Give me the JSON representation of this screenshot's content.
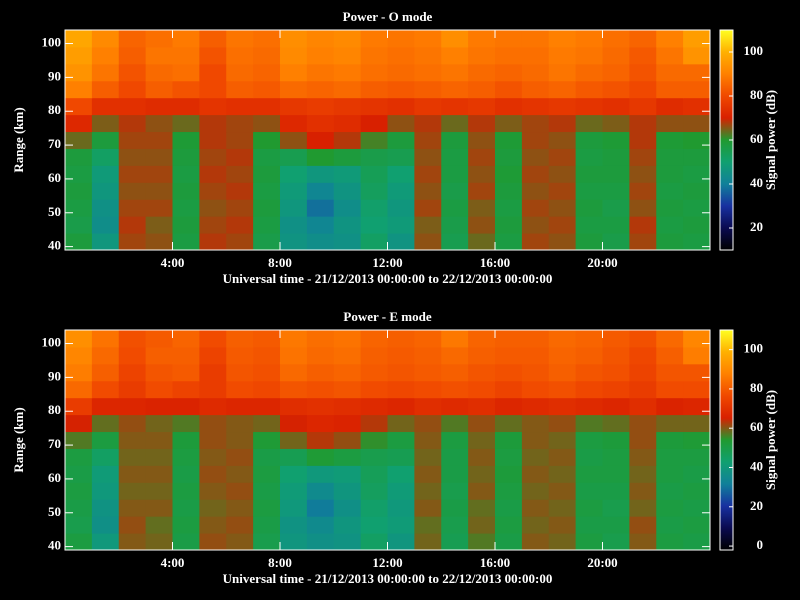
{
  "chart_data": [
    {
      "type": "heatmap",
      "title": "Power - O mode",
      "xlabel": "Universal time - 21/12/2013 00:00:00 to 22/12/2013 00:00:00",
      "ylabel": "Range (km)",
      "colorbar_label": "Signal power (dB)",
      "xlim": [
        0,
        24
      ],
      "ylim": [
        39,
        104
      ],
      "clim": [
        10,
        110
      ],
      "xticks": [
        {
          "value": 4,
          "label": "4:00"
        },
        {
          "value": 8,
          "label": "8:00"
        },
        {
          "value": 12,
          "label": "12:00"
        },
        {
          "value": 16,
          "label": "16:00"
        },
        {
          "value": 20,
          "label": "20:00"
        }
      ],
      "yticks": [
        40,
        50,
        60,
        70,
        80,
        90,
        100
      ],
      "cticks": [
        20,
        40,
        60,
        80,
        100
      ],
      "colormap": [
        "#000000",
        "#0a0a50",
        "#1830a0",
        "#10809a",
        "#10a070",
        "#209a30",
        "#d82000",
        "#f04800",
        "#ff8000",
        "#ffb000",
        "#ffff20"
      ],
      "xbins": [
        0,
        1,
        2,
        3,
        4,
        5,
        6,
        7,
        8,
        9,
        10,
        11,
        12,
        13,
        14,
        15,
        16,
        17,
        18,
        19,
        20,
        21,
        22,
        23,
        24
      ],
      "ybins": [
        39,
        44,
        49,
        54,
        59,
        64,
        69,
        74,
        79,
        84,
        89,
        94,
        99,
        104
      ],
      "values": [
        [
          58,
          47,
          67,
          66,
          57,
          68,
          67,
          56,
          46,
          44,
          45,
          52,
          46,
          66,
          55,
          64,
          57,
          67,
          66,
          58,
          56,
          67,
          58,
          57
        ],
        [
          56,
          44,
          68,
          65,
          58,
          67,
          68,
          57,
          45,
          42,
          46,
          50,
          48,
          65,
          56,
          66,
          58,
          66,
          67,
          57,
          57,
          68,
          57,
          58
        ],
        [
          57,
          45,
          67,
          67,
          57,
          66,
          67,
          58,
          47,
          38,
          44,
          51,
          47,
          67,
          57,
          65,
          57,
          67,
          66,
          58,
          56,
          66,
          58,
          57
        ],
        [
          58,
          47,
          66,
          66,
          58,
          67,
          68,
          57,
          48,
          42,
          46,
          53,
          48,
          66,
          56,
          67,
          58,
          66,
          67,
          57,
          57,
          67,
          57,
          58
        ],
        [
          57,
          48,
          67,
          67,
          57,
          68,
          67,
          58,
          50,
          47,
          48,
          54,
          50,
          67,
          57,
          66,
          59,
          67,
          66,
          58,
          58,
          66,
          58,
          57
        ],
        [
          58,
          52,
          66,
          66,
          58,
          67,
          68,
          57,
          55,
          60,
          58,
          56,
          55,
          66,
          57,
          67,
          58,
          66,
          67,
          57,
          58,
          67,
          58,
          58
        ],
        [
          64,
          58,
          67,
          67,
          59,
          68,
          67,
          60,
          66,
          70,
          68,
          62,
          58,
          67,
          58,
          66,
          59,
          67,
          66,
          58,
          59,
          68,
          59,
          60
        ],
        [
          72,
          65,
          68,
          66,
          64,
          68,
          67,
          66,
          72,
          74,
          73,
          70,
          66,
          68,
          64,
          68,
          65,
          67,
          68,
          64,
          65,
          68,
          66,
          66
        ],
        [
          80,
          74,
          74,
          73,
          73,
          75,
          74,
          74,
          76,
          77,
          76,
          75,
          74,
          76,
          75,
          76,
          74,
          75,
          76,
          75,
          74,
          76,
          73,
          74
        ],
        [
          90,
          84,
          80,
          84,
          82,
          80,
          84,
          83,
          86,
          85,
          86,
          84,
          83,
          84,
          85,
          84,
          82,
          84,
          85,
          83,
          82,
          80,
          84,
          84
        ],
        [
          94,
          88,
          82,
          86,
          87,
          80,
          86,
          85,
          90,
          88,
          89,
          87,
          86,
          87,
          88,
          86,
          85,
          86,
          88,
          86,
          85,
          82,
          86,
          86
        ],
        [
          96,
          90,
          84,
          88,
          88,
          82,
          87,
          86,
          92,
          90,
          91,
          88,
          87,
          88,
          90,
          88,
          87,
          87,
          89,
          88,
          86,
          83,
          88,
          94
        ],
        [
          98,
          92,
          85,
          87,
          89,
          84,
          88,
          87,
          93,
          91,
          92,
          89,
          88,
          89,
          93,
          89,
          88,
          88,
          90,
          89,
          87,
          85,
          90,
          96
        ]
      ]
    },
    {
      "type": "heatmap",
      "title": "Power - E mode",
      "xlabel": "Universal time - 21/12/2013 00:00:00 to 22/12/2013 00:00:00",
      "ylabel": "Range (km)",
      "colorbar_label": "Signal power (dB)",
      "xlim": [
        0,
        24
      ],
      "ylim": [
        39,
        104
      ],
      "clim": [
        -2,
        110
      ],
      "xticks": [
        {
          "value": 4,
          "label": "4:00"
        },
        {
          "value": 8,
          "label": "8:00"
        },
        {
          "value": 12,
          "label": "12:00"
        },
        {
          "value": 16,
          "label": "16:00"
        },
        {
          "value": 20,
          "label": "20:00"
        }
      ],
      "yticks": [
        40,
        50,
        60,
        70,
        80,
        90,
        100
      ],
      "cticks": [
        0,
        20,
        40,
        60,
        80,
        100
      ],
      "colormap": [
        "#000000",
        "#0a0a50",
        "#1830a0",
        "#10809a",
        "#10a070",
        "#209a30",
        "#d82000",
        "#f04800",
        "#ff8000",
        "#ffb000",
        "#ffff20"
      ],
      "xbins": [
        0,
        1,
        2,
        3,
        4,
        5,
        6,
        7,
        8,
        9,
        10,
        11,
        12,
        13,
        14,
        15,
        16,
        17,
        18,
        19,
        20,
        21,
        22,
        23,
        24
      ],
      "ybins": [
        39,
        44,
        49,
        54,
        59,
        64,
        69,
        74,
        79,
        84,
        89,
        94,
        99,
        104
      ],
      "values": [
        [
          51,
          40,
          60,
          59,
          50,
          61,
          60,
          49,
          39,
          37,
          38,
          45,
          39,
          59,
          48,
          57,
          50,
          60,
          59,
          51,
          49,
          60,
          51,
          50
        ],
        [
          49,
          37,
          61,
          58,
          51,
          60,
          61,
          50,
          38,
          35,
          39,
          43,
          41,
          58,
          49,
          59,
          51,
          59,
          60,
          50,
          50,
          61,
          50,
          51
        ],
        [
          50,
          38,
          60,
          60,
          50,
          59,
          60,
          51,
          40,
          31,
          37,
          44,
          40,
          60,
          50,
          58,
          50,
          60,
          59,
          51,
          49,
          59,
          51,
          50
        ],
        [
          51,
          40,
          59,
          59,
          51,
          60,
          61,
          50,
          41,
          35,
          39,
          46,
          41,
          59,
          49,
          60,
          51,
          59,
          60,
          50,
          50,
          60,
          50,
          51
        ],
        [
          50,
          41,
          60,
          60,
          50,
          61,
          60,
          51,
          43,
          40,
          41,
          47,
          43,
          60,
          50,
          59,
          52,
          60,
          59,
          51,
          51,
          59,
          51,
          50
        ],
        [
          51,
          45,
          59,
          59,
          51,
          60,
          61,
          50,
          48,
          53,
          51,
          49,
          48,
          59,
          50,
          60,
          51,
          59,
          60,
          50,
          51,
          60,
          51,
          51
        ],
        [
          57,
          51,
          60,
          60,
          52,
          61,
          60,
          53,
          59,
          63,
          61,
          55,
          51,
          60,
          51,
          59,
          52,
          60,
          59,
          51,
          52,
          61,
          52,
          53
        ],
        [
          65,
          58,
          61,
          59,
          57,
          61,
          60,
          59,
          65,
          67,
          66,
          63,
          59,
          61,
          57,
          61,
          58,
          60,
          61,
          57,
          58,
          61,
          59,
          59
        ],
        [
          73,
          67,
          67,
          66,
          66,
          68,
          67,
          67,
          69,
          70,
          69,
          68,
          67,
          69,
          68,
          69,
          67,
          68,
          69,
          68,
          67,
          69,
          66,
          67
        ],
        [
          83,
          77,
          73,
          77,
          75,
          73,
          77,
          76,
          79,
          78,
          79,
          77,
          76,
          77,
          78,
          77,
          75,
          77,
          78,
          76,
          75,
          73,
          77,
          77
        ],
        [
          87,
          81,
          75,
          79,
          80,
          73,
          79,
          78,
          83,
          81,
          82,
          80,
          79,
          80,
          81,
          79,
          78,
          79,
          81,
          79,
          78,
          75,
          79,
          79
        ],
        [
          89,
          83,
          77,
          81,
          81,
          75,
          80,
          79,
          85,
          83,
          84,
          81,
          80,
          81,
          83,
          81,
          80,
          80,
          82,
          81,
          79,
          76,
          81,
          87
        ],
        [
          91,
          85,
          78,
          80,
          82,
          77,
          81,
          80,
          86,
          84,
          85,
          82,
          81,
          82,
          86,
          82,
          81,
          81,
          83,
          82,
          80,
          78,
          83,
          89
        ]
      ]
    }
  ]
}
